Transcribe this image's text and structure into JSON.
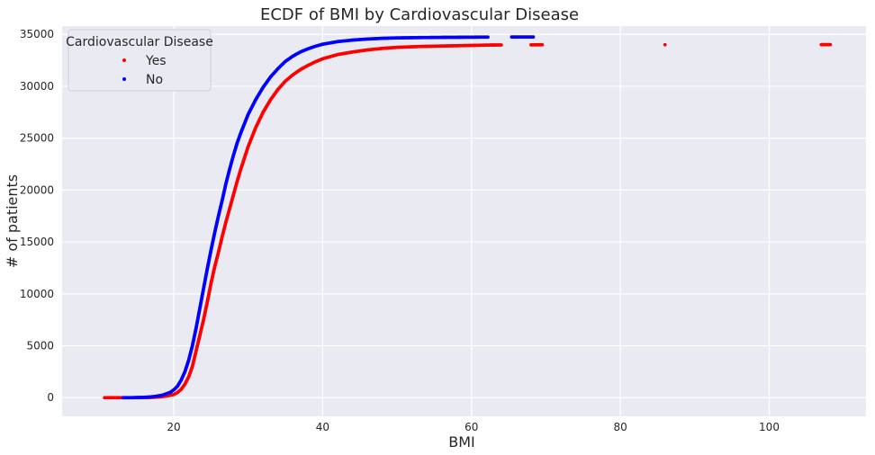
{
  "chart_data": {
    "type": "scatter",
    "title": "ECDF of BMI by Cardiovascular Disease",
    "xlabel": "BMI",
    "ylabel": "# of patients",
    "xlim": [
      5,
      113
    ],
    "ylim": [
      -1800,
      35800
    ],
    "xticks": [
      20,
      40,
      60,
      80,
      100
    ],
    "yticks": [
      0,
      5000,
      10000,
      15000,
      20000,
      25000,
      30000,
      35000
    ],
    "grid": true,
    "background": "#eaeaf2",
    "legend": {
      "title": "Cardiovascular Disease",
      "placement": "top-left"
    },
    "series": [
      {
        "name": "Yes",
        "color": "#ff0000",
        "points": [
          [
            10.7,
            0
          ],
          [
            11.5,
            0
          ],
          [
            12.1,
            0
          ],
          [
            12.7,
            0
          ],
          [
            14.5,
            0
          ],
          [
            16.0,
            5
          ],
          [
            17.0,
            20
          ],
          [
            18.0,
            60
          ],
          [
            19.0,
            150
          ],
          [
            20.0,
            300
          ],
          [
            20.5,
            500
          ],
          [
            21.0,
            800
          ],
          [
            21.5,
            1300
          ],
          [
            22.0,
            2000
          ],
          [
            22.5,
            3000
          ],
          [
            23.0,
            4500
          ],
          [
            23.5,
            6000
          ],
          [
            24.0,
            7500
          ],
          [
            24.5,
            9200
          ],
          [
            25.0,
            11000
          ],
          [
            25.5,
            12600
          ],
          [
            26.0,
            14000
          ],
          [
            26.5,
            15500
          ],
          [
            27.0,
            16900
          ],
          [
            27.5,
            18200
          ],
          [
            28.0,
            19500
          ],
          [
            28.5,
            20800
          ],
          [
            29.0,
            22000
          ],
          [
            30.0,
            24200
          ],
          [
            31.0,
            26000
          ],
          [
            32.0,
            27500
          ],
          [
            33.0,
            28700
          ],
          [
            34.0,
            29700
          ],
          [
            35.0,
            30500
          ],
          [
            36.0,
            31100
          ],
          [
            37.0,
            31600
          ],
          [
            38.0,
            32000
          ],
          [
            39.0,
            32350
          ],
          [
            40.0,
            32650
          ],
          [
            42.0,
            33050
          ],
          [
            44.0,
            33300
          ],
          [
            46.0,
            33500
          ],
          [
            48.0,
            33650
          ],
          [
            50.0,
            33750
          ],
          [
            53.0,
            33830
          ],
          [
            56.0,
            33880
          ],
          [
            59.0,
            33920
          ],
          [
            61.0,
            33950
          ],
          [
            62.0,
            33970
          ],
          [
            64.0,
            33980
          ],
          [
            68.0,
            33990
          ],
          [
            69.5,
            34000
          ],
          [
            86.0,
            34005
          ],
          [
            107.0,
            34010
          ],
          [
            108.2,
            34015
          ]
        ]
      },
      {
        "name": "No",
        "color": "#0000ff",
        "points": [
          [
            13.2,
            0
          ],
          [
            14.5,
            0
          ],
          [
            15.5,
            20
          ],
          [
            16.5,
            50
          ],
          [
            17.5,
            120
          ],
          [
            18.5,
            250
          ],
          [
            19.5,
            500
          ],
          [
            20.0,
            750
          ],
          [
            20.5,
            1100
          ],
          [
            21.0,
            1700
          ],
          [
            21.5,
            2500
          ],
          [
            22.0,
            3600
          ],
          [
            22.5,
            5000
          ],
          [
            23.0,
            6700
          ],
          [
            23.5,
            8600
          ],
          [
            24.0,
            10500
          ],
          [
            24.5,
            12400
          ],
          [
            25.0,
            14200
          ],
          [
            25.5,
            15900
          ],
          [
            26.0,
            17500
          ],
          [
            26.5,
            19000
          ],
          [
            27.0,
            20600
          ],
          [
            27.5,
            22000
          ],
          [
            28.0,
            23300
          ],
          [
            28.5,
            24500
          ],
          [
            29.0,
            25500
          ],
          [
            30.0,
            27300
          ],
          [
            31.0,
            28700
          ],
          [
            32.0,
            29900
          ],
          [
            33.0,
            30900
          ],
          [
            34.0,
            31700
          ],
          [
            35.0,
            32400
          ],
          [
            36.0,
            32900
          ],
          [
            37.0,
            33300
          ],
          [
            38.0,
            33600
          ],
          [
            39.0,
            33850
          ],
          [
            40.0,
            34050
          ],
          [
            42.0,
            34300
          ],
          [
            44.0,
            34450
          ],
          [
            46.0,
            34550
          ],
          [
            48.0,
            34620
          ],
          [
            50.0,
            34660
          ],
          [
            53.0,
            34690
          ],
          [
            56.0,
            34710
          ],
          [
            58.0,
            34720
          ],
          [
            60.3,
            34730
          ],
          [
            61.0,
            34735
          ],
          [
            62.2,
            34740
          ],
          [
            65.4,
            34745
          ],
          [
            68.3,
            34750
          ]
        ]
      }
    ]
  }
}
